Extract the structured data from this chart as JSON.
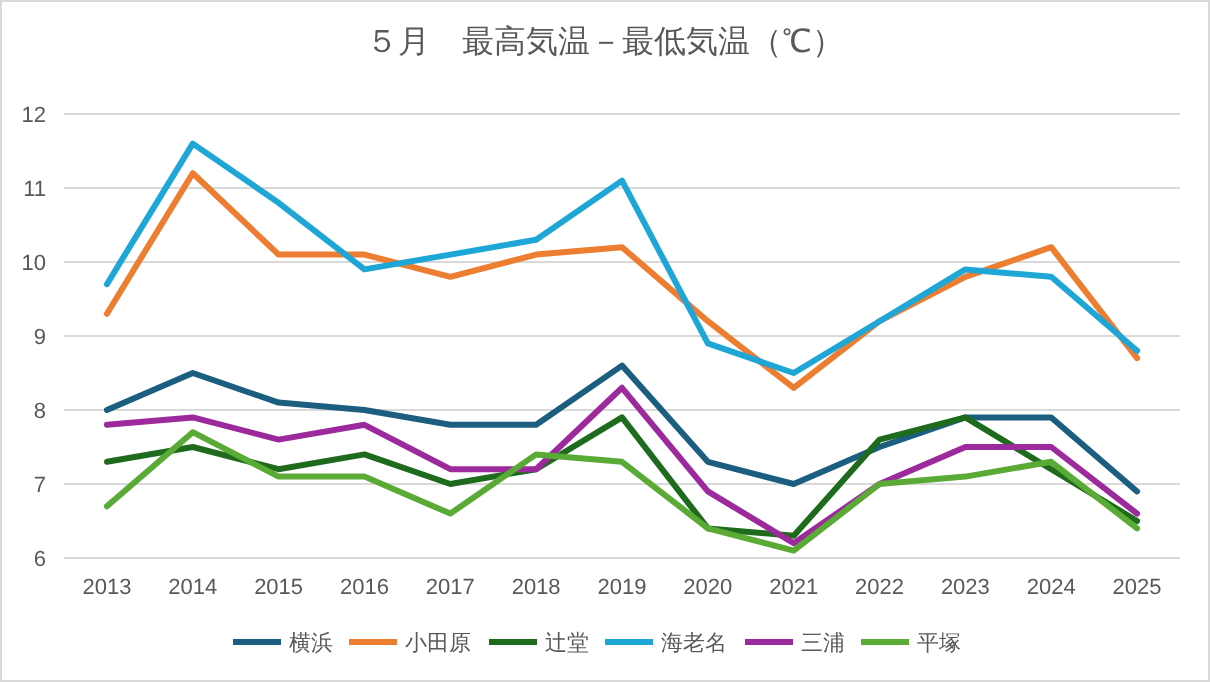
{
  "chart_data": {
    "type": "line",
    "title": "５月　最高気温－最低気温（℃）",
    "categories": [
      "2013",
      "2014",
      "2015",
      "2016",
      "2017",
      "2018",
      "2019",
      "2020",
      "2021",
      "2022",
      "2023",
      "2024",
      "2025"
    ],
    "series": [
      {
        "name": "横浜",
        "color": "#1b5e80",
        "values": [
          8.0,
          8.5,
          8.1,
          8.0,
          7.8,
          7.8,
          8.6,
          7.3,
          7.0,
          7.5,
          7.9,
          7.9,
          6.9
        ]
      },
      {
        "name": "小田原",
        "color": "#ed7d31",
        "values": [
          9.3,
          11.2,
          10.1,
          10.1,
          9.8,
          10.1,
          10.2,
          9.2,
          8.3,
          9.2,
          9.8,
          10.2,
          8.7
        ]
      },
      {
        "name": "辻堂",
        "color": "#1e6b1e",
        "values": [
          7.3,
          7.5,
          7.2,
          7.4,
          7.0,
          7.2,
          7.9,
          6.4,
          6.3,
          7.6,
          7.9,
          7.2,
          6.5
        ]
      },
      {
        "name": "海老名",
        "color": "#1ea7d6",
        "values": [
          9.7,
          11.6,
          10.8,
          9.9,
          10.1,
          10.3,
          11.1,
          8.9,
          8.5,
          9.2,
          9.9,
          9.8,
          8.8
        ]
      },
      {
        "name": "三浦",
        "color": "#9c2a9c",
        "values": [
          7.8,
          7.9,
          7.6,
          7.8,
          7.2,
          7.2,
          8.3,
          6.9,
          6.2,
          7.0,
          7.5,
          7.5,
          6.6
        ]
      },
      {
        "name": "平塚",
        "color": "#5aab35",
        "values": [
          6.7,
          7.7,
          7.1,
          7.1,
          6.6,
          7.4,
          7.3,
          6.4,
          6.1,
          7.0,
          7.1,
          7.3,
          6.4
        ]
      }
    ],
    "ylim": [
      6,
      12
    ],
    "yticks": [
      6,
      7,
      8,
      9,
      10,
      11,
      12
    ],
    "grid": "y",
    "legend": "bottom",
    "marker": "none",
    "line_style": "solid"
  }
}
